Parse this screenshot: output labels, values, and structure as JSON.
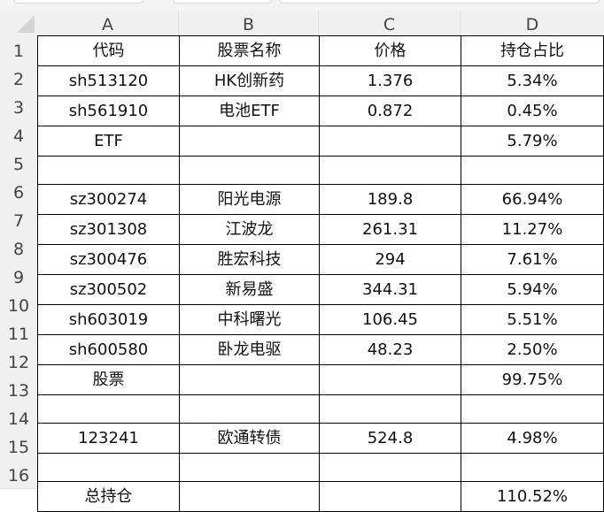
{
  "columns": [
    "A",
    "B",
    "C",
    "D"
  ],
  "rows": [
    {
      "n": "1",
      "a": "代码",
      "b": "股票名称",
      "c": "价格",
      "d": "持仓占比"
    },
    {
      "n": "2",
      "a": "sh513120",
      "b": "HK创新药",
      "c": "1.376",
      "d": "5.34%"
    },
    {
      "n": "3",
      "a": "sh561910",
      "b": "电池ETF",
      "c": "0.872",
      "d": "0.45%"
    },
    {
      "n": "4",
      "a": "ETF",
      "b": "",
      "c": "",
      "d": "5.79%"
    },
    {
      "n": "5",
      "a": "",
      "b": "",
      "c": "",
      "d": ""
    },
    {
      "n": "6",
      "a": "sz300274",
      "b": "阳光电源",
      "c": "189.8",
      "d": "66.94%"
    },
    {
      "n": "7",
      "a": "sz301308",
      "b": "江波龙",
      "c": "261.31",
      "d": "11.27%"
    },
    {
      "n": "8",
      "a": "sz300476",
      "b": "胜宏科技",
      "c": "294",
      "d": "7.61%"
    },
    {
      "n": "9",
      "a": "sz300502",
      "b": "新易盛",
      "c": "344.31",
      "d": "5.94%"
    },
    {
      "n": "10",
      "a": "sh603019",
      "b": "中科曙光",
      "c": "106.45",
      "d": "5.51%"
    },
    {
      "n": "11",
      "a": "sh600580",
      "b": "卧龙电驱",
      "c": "48.23",
      "d": "2.50%"
    },
    {
      "n": "12",
      "a": "股票",
      "b": "",
      "c": "",
      "d": "99.75%"
    },
    {
      "n": "13",
      "a": "",
      "b": "",
      "c": "",
      "d": ""
    },
    {
      "n": "14",
      "a": "123241",
      "b": "欧通转债",
      "c": "524.8",
      "d": "4.98%"
    },
    {
      "n": "15",
      "a": "",
      "b": "",
      "c": "",
      "d": ""
    },
    {
      "n": "16",
      "a": "总持仓",
      "b": "",
      "c": "",
      "d": "110.52%"
    }
  ]
}
